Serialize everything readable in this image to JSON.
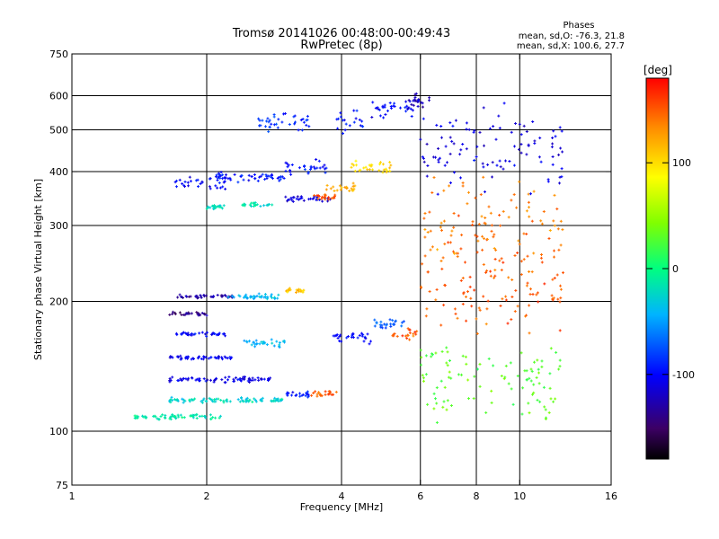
{
  "title": {
    "line1": "Tromsø 20141026 00:48:00-00:49:43",
    "line2": "RwPretec (8p)"
  },
  "stats": {
    "heading": "Phases",
    "o_mode": "mean, sd,O: -76.3, 21.8",
    "x_mode": "mean, sd,X: 100.6, 27.7"
  },
  "chart_data": {
    "type": "scatter",
    "title": "Tromsø 20141026 00:48:00-00:49:43",
    "subtitle": "RwPretec (8p)",
    "xlabel": "Frequency [MHz]",
    "ylabel": "Stationary phase Virtual Height [km]",
    "x_scale": "log",
    "y_scale": "log",
    "xlim": [
      1,
      16
    ],
    "ylim": [
      75,
      750
    ],
    "x_ticks": [
      1,
      2,
      4,
      6,
      8,
      10,
      16
    ],
    "x_tick_labels": [
      "1",
      "2",
      "4",
      "6",
      "8",
      "10",
      "16"
    ],
    "x_gridlines": [
      2,
      4,
      6,
      8,
      10
    ],
    "y_ticks": [
      75,
      100,
      200,
      300,
      400,
      500,
      600,
      750
    ],
    "y_tick_labels": [
      "75",
      "100",
      "200",
      "300",
      "400",
      "500",
      "600",
      "750"
    ],
    "y_gridlines": [
      100,
      200,
      300,
      400,
      500,
      600
    ],
    "grid": true,
    "colorbar": {
      "label": "[deg]",
      "range": [
        -180,
        180
      ],
      "ticks": [
        100,
        0,
        -100
      ],
      "tick_labels": [
        "100",
        "0",
        "-100"
      ],
      "colormap": "rainbow"
    },
    "series": [
      {
        "f_min": 1.38,
        "f_max": 2.15,
        "h": 108,
        "phase": -15,
        "spread": 0.02
      },
      {
        "f_min": 1.65,
        "f_max": 3.0,
        "h": 118,
        "phase": -25,
        "spread": 0.02
      },
      {
        "f_min": 1.65,
        "f_max": 2.8,
        "h": 132,
        "phase": -110,
        "spread": 0.02
      },
      {
        "f_min": 1.65,
        "f_max": 2.3,
        "h": 148,
        "phase": -105,
        "spread": 0.015
      },
      {
        "f_min": 1.7,
        "f_max": 2.2,
        "h": 168,
        "phase": -100,
        "spread": 0.015
      },
      {
        "f_min": 1.65,
        "f_max": 2.0,
        "h": 187,
        "phase": -140,
        "spread": 0.015
      },
      {
        "f_min": 1.7,
        "f_max": 2.3,
        "h": 205,
        "phase": -130,
        "spread": 0.015
      },
      {
        "f_min": 2.2,
        "f_max": 2.9,
        "h": 205,
        "phase": -40,
        "spread": 0.02
      },
      {
        "f_min": 2.4,
        "f_max": 3.0,
        "h": 160,
        "phase": -40,
        "spread": 0.03
      },
      {
        "f_min": 3.0,
        "f_max": 3.3,
        "h": 212,
        "phase": 110,
        "spread": 0.02
      },
      {
        "f_min": 3.0,
        "f_max": 3.4,
        "h": 122,
        "phase": -95,
        "spread": 0.02
      },
      {
        "f_min": 3.4,
        "f_max": 3.9,
        "h": 122,
        "phase": 150,
        "spread": 0.02
      },
      {
        "f_min": 3.8,
        "f_max": 4.7,
        "h": 165,
        "phase": -100,
        "spread": 0.05
      },
      {
        "f_min": 4.7,
        "f_max": 5.6,
        "h": 178,
        "phase": -70,
        "spread": 0.04
      },
      {
        "f_min": 5.2,
        "f_max": 5.9,
        "h": 168,
        "phase": 150,
        "spread": 0.04
      },
      {
        "f_min": 1.7,
        "f_max": 2.2,
        "h": 378,
        "phase": -100,
        "spread": 0.05
      },
      {
        "f_min": 2.0,
        "f_max": 2.2,
        "h": 332,
        "phase": -20,
        "spread": 0.02
      },
      {
        "f_min": 2.4,
        "f_max": 2.8,
        "h": 335,
        "phase": -20,
        "spread": 0.02
      },
      {
        "f_min": 2.1,
        "f_max": 3.0,
        "h": 388,
        "phase": -95,
        "spread": 0.04
      },
      {
        "f_min": 2.6,
        "f_max": 3.4,
        "h": 520,
        "phase": -85,
        "spread": 0.08
      },
      {
        "f_min": 3.0,
        "f_max": 3.8,
        "h": 345,
        "phase": -110,
        "spread": 0.02
      },
      {
        "f_min": 3.0,
        "f_max": 3.7,
        "h": 410,
        "phase": -95,
        "spread": 0.06
      },
      {
        "f_min": 3.4,
        "f_max": 3.9,
        "h": 350,
        "phase": 150,
        "spread": 0.02
      },
      {
        "f_min": 3.7,
        "f_max": 4.3,
        "h": 365,
        "phase": 120,
        "spread": 0.04
      },
      {
        "f_min": 3.9,
        "f_max": 4.5,
        "h": 520,
        "phase": -90,
        "spread": 0.08
      },
      {
        "f_min": 4.2,
        "f_max": 5.2,
        "h": 410,
        "phase": 100,
        "spread": 0.05
      },
      {
        "f_min": 4.6,
        "f_max": 5.8,
        "h": 560,
        "phase": -100,
        "spread": 0.08
      },
      {
        "f_min": 5.6,
        "f_max": 6.4,
        "h": 590,
        "phase": -120,
        "spread": 0.05
      },
      {
        "f_min": 6.0,
        "f_max": 12.5,
        "h": 300,
        "phase": 140,
        "spread": 0.35
      },
      {
        "f_min": 6.0,
        "f_max": 12.5,
        "h": 210,
        "phase": 150,
        "spread": 0.35
      },
      {
        "f_min": 6.0,
        "f_max": 12.5,
        "h": 450,
        "phase": -110,
        "spread": 0.3
      },
      {
        "f_min": 6.0,
        "f_max": 12.5,
        "h": 130,
        "phase": 30,
        "spread": 0.3
      }
    ]
  }
}
